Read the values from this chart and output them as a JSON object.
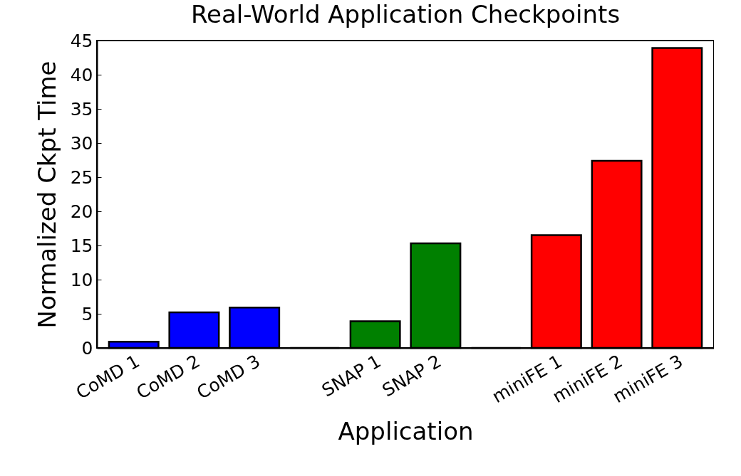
{
  "chart_data": {
    "type": "bar",
    "title": "Real-World Application Checkpoints",
    "xlabel": "Application",
    "ylabel": "Normalized Ckpt Time",
    "categories": [
      "CoMD 1",
      "CoMD 2",
      "CoMD 3",
      null,
      "SNAP 1",
      "SNAP 2",
      null,
      "miniFE 1",
      "miniFE 2",
      "miniFE 3"
    ],
    "values": [
      0.9,
      5.2,
      5.9,
      0,
      3.9,
      15.3,
      0,
      16.5,
      27.4,
      43.9
    ],
    "colors": [
      "#0000ff",
      "#0000ff",
      "#0000ff",
      "#000000",
      "#008000",
      "#008000",
      "#000000",
      "#ff0000",
      "#ff0000",
      "#ff0000"
    ],
    "ylim": [
      0,
      45
    ],
    "yticks": [
      0,
      5,
      10,
      15,
      20,
      25,
      30,
      35,
      40,
      45
    ],
    "grid": false,
    "legend": false
  }
}
